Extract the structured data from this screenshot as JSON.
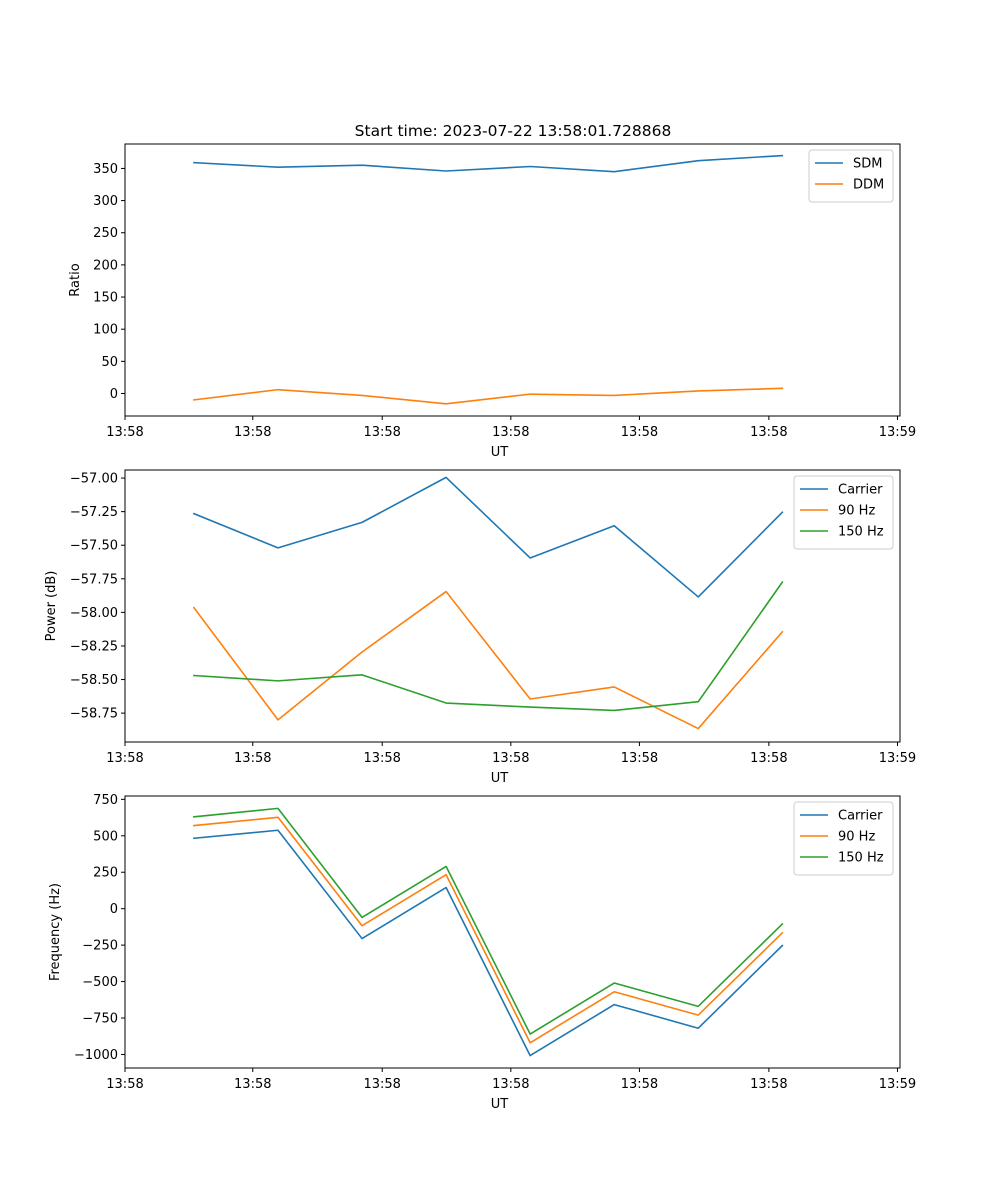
{
  "figure": {
    "title": "Start time: 2023-07-22 13:58:01.728868"
  },
  "chart_data": [
    {
      "type": "line",
      "title": "Start time: 2023-07-22 13:58:01.728868",
      "xlabel": "UT",
      "ylabel": "Ratio",
      "x": [
        1,
        2,
        3,
        4,
        5,
        6,
        7,
        8
      ],
      "xlim": [
        0.18,
        9.4
      ],
      "x_ticks": [
        0.18,
        1.7,
        3.24,
        4.77,
        6.3,
        7.84,
        9.37
      ],
      "x_tick_labels": [
        "13:58",
        "13:58",
        "13:58",
        "13:58",
        "13:58",
        "13:58",
        "13:59"
      ],
      "ylim": [
        -35,
        388
      ],
      "y_ticks": [
        0,
        50,
        100,
        150,
        200,
        250,
        300,
        350
      ],
      "y_tick_labels": [
        "0",
        "50",
        "100",
        "150",
        "200",
        "250",
        "300",
        "350"
      ],
      "legend_position": "top-right",
      "series": [
        {
          "name": "SDM",
          "color": "#1f77b4",
          "values": [
            359,
            352,
            355,
            346,
            353,
            345,
            362,
            370
          ]
        },
        {
          "name": "DDM",
          "color": "#ff7f0e",
          "values": [
            -10,
            6,
            -3,
            -16,
            -1,
            -3,
            4,
            8
          ]
        }
      ]
    },
    {
      "type": "line",
      "title": "",
      "xlabel": "UT",
      "ylabel": "Power (dB)",
      "x": [
        1,
        2,
        3,
        4,
        5,
        6,
        7,
        8
      ],
      "xlim": [
        0.18,
        9.4
      ],
      "x_ticks": [
        0.18,
        1.7,
        3.24,
        4.77,
        6.3,
        7.84,
        9.37
      ],
      "x_tick_labels": [
        "13:58",
        "13:58",
        "13:58",
        "13:58",
        "13:58",
        "13:58",
        "13:59"
      ],
      "ylim": [
        -58.965,
        -56.94
      ],
      "y_ticks": [
        -58.75,
        -58.5,
        -58.25,
        -58.0,
        -57.75,
        -57.5,
        -57.25,
        -57.0
      ],
      "y_tick_labels": [
        "−58.75",
        "−58.50",
        "−58.25",
        "−58.00",
        "−57.75",
        "−57.50",
        "−57.25",
        "−57.00"
      ],
      "legend_position": "top-right",
      "series": [
        {
          "name": "Carrier",
          "color": "#1f77b4",
          "values": [
            -57.265,
            -57.52,
            -57.33,
            -56.995,
            -57.595,
            -57.355,
            -57.885,
            -57.255
          ]
        },
        {
          "name": "90 Hz",
          "color": "#ff7f0e",
          "values": [
            -57.965,
            -58.8,
            -58.295,
            -57.845,
            -58.645,
            -58.555,
            -58.865,
            -58.145
          ]
        },
        {
          "name": "150 Hz",
          "color": "#2ca02c",
          "values": [
            -58.47,
            -58.51,
            -58.465,
            -58.675,
            -58.705,
            -58.73,
            -58.665,
            -57.775
          ]
        }
      ]
    },
    {
      "type": "line",
      "title": "",
      "xlabel": "UT",
      "ylabel": "Frequency (Hz)",
      "x": [
        1,
        2,
        3,
        4,
        5,
        6,
        7,
        8
      ],
      "xlim": [
        0.18,
        9.4
      ],
      "x_ticks": [
        0.18,
        1.7,
        3.24,
        4.77,
        6.3,
        7.84,
        9.37
      ],
      "x_tick_labels": [
        "13:58",
        "13:58",
        "13:58",
        "13:58",
        "13:58",
        "13:58",
        "13:59"
      ],
      "ylim": [
        -1093,
        773
      ],
      "y_ticks": [
        -1000,
        -750,
        -500,
        -250,
        0,
        250,
        500,
        750
      ],
      "y_tick_labels": [
        "−1000",
        "−750",
        "−500",
        "−250",
        "0",
        "250",
        "500",
        "750"
      ],
      "legend_position": "top-right",
      "series": [
        {
          "name": "Carrier",
          "color": "#1f77b4",
          "values": [
            483,
            538,
            -205,
            145,
            -1008,
            -658,
            -820,
            -253
          ]
        },
        {
          "name": "90 Hz",
          "color": "#ff7f0e",
          "values": [
            570,
            627,
            -117,
            233,
            -920,
            -570,
            -730,
            -166
          ]
        },
        {
          "name": "150 Hz",
          "color": "#2ca02c",
          "values": [
            630,
            688,
            -60,
            290,
            -860,
            -510,
            -670,
            -105
          ]
        }
      ]
    }
  ]
}
